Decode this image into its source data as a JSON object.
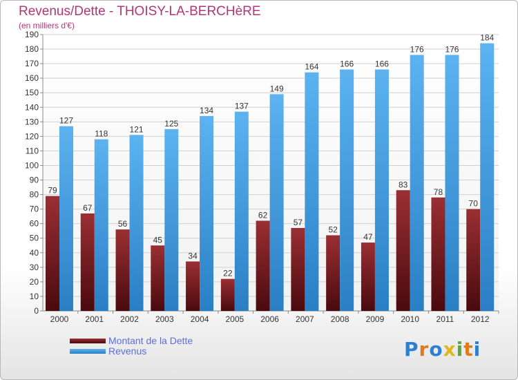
{
  "title": "Revenus/Dette - THOISY-LA-BERCHèRE",
  "subtitle": "(en milliers d'€)",
  "logo": "Proxiti",
  "colors": {
    "dette": "#7a1a20",
    "revenus": "#4aa3e6",
    "title": "#b0357a",
    "legend_text": "#5a6ee0"
  },
  "chart_data": {
    "type": "bar",
    "title": "Revenus/Dette - THOISY-LA-BERCHèRE",
    "ylabel": "(en milliers d'€)",
    "ylim": [
      0,
      190
    ],
    "ytick_step": 10,
    "grid": true,
    "legend_position": "bottom-left",
    "categories": [
      "2000",
      "2001",
      "2002",
      "2003",
      "2004",
      "2005",
      "2006",
      "2007",
      "2008",
      "2009",
      "2010",
      "2011",
      "2012"
    ],
    "series": [
      {
        "name": "Montant de la Dette",
        "color": "#7a1a20",
        "values": [
          79,
          67,
          56,
          45,
          34,
          22,
          62,
          57,
          52,
          47,
          83,
          78,
          70
        ]
      },
      {
        "name": "Revenus",
        "color": "#4aa3e6",
        "values": [
          127,
          118,
          121,
          125,
          134,
          137,
          149,
          164,
          166,
          166,
          176,
          176,
          184
        ]
      }
    ]
  }
}
